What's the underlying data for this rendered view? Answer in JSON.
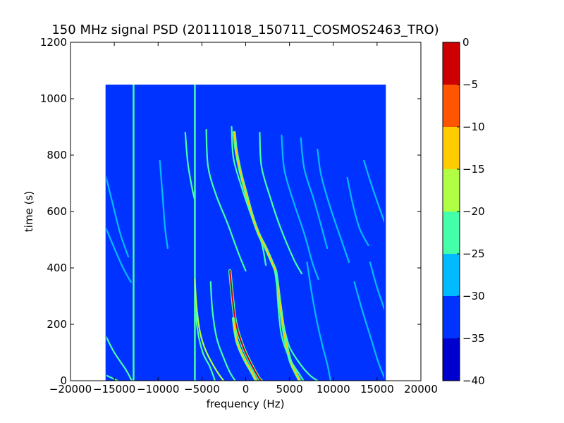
{
  "chart_data": {
    "type": "heatmap",
    "title": "150 MHz signal PSD (20111018_150711_COSMOS2463_TRO)",
    "xlabel": "frequency (Hz)",
    "ylabel": "time (s)",
    "xlim": [
      -20000,
      20000
    ],
    "ylim": [
      0,
      1200
    ],
    "x_ticks": [
      -20000,
      -15000,
      -10000,
      -5000,
      0,
      5000,
      10000,
      15000,
      20000
    ],
    "x_tick_labels": [
      "−20000",
      "−15000",
      "−10000",
      "−5000",
      "0",
      "5000",
      "10000",
      "15000",
      "20000"
    ],
    "y_ticks": [
      0,
      200,
      400,
      600,
      800,
      1000,
      1200
    ],
    "y_tick_labels": [
      "0",
      "200",
      "400",
      "600",
      "800",
      "1000",
      "1200"
    ],
    "data_extent": {
      "x": [
        -16000,
        16000
      ],
      "y": [
        0,
        1050
      ]
    },
    "background_level": -33,
    "colorbar": {
      "levels": [
        -40,
        -35,
        -30,
        -25,
        -20,
        -15,
        -10,
        -5,
        0
      ],
      "tick_labels": [
        "−40",
        "−35",
        "−30",
        "−25",
        "−20",
        "−15",
        "−10",
        "−5",
        "0"
      ],
      "colors": [
        "#0000cc",
        "#0033ff",
        "#00bbff",
        "#44ffaa",
        "#b0ff44",
        "#ffcc00",
        "#ff5500",
        "#cc0000"
      ]
    },
    "vertical_lines": [
      {
        "x": -12800,
        "y_range": [
          0,
          1050
        ],
        "level": -25
      },
      {
        "x": -5800,
        "y_range": [
          0,
          1050
        ],
        "level": -25
      }
    ],
    "traces": [
      {
        "points": [
          [
            -16000,
            20
          ],
          [
            -14600,
            0
          ]
        ],
        "level": -25
      },
      {
        "points": [
          [
            -16000,
            160
          ],
          [
            -15000,
            100
          ],
          [
            -13700,
            40
          ],
          [
            -13000,
            0
          ]
        ],
        "level": -25
      },
      {
        "points": [
          [
            -16000,
            545
          ],
          [
            -15000,
            470
          ],
          [
            -14000,
            400
          ],
          [
            -13100,
            350
          ]
        ],
        "level": -28
      },
      {
        "points": [
          [
            -16000,
            730
          ],
          [
            -15200,
            630
          ],
          [
            -14300,
            520
          ],
          [
            -13400,
            440
          ]
        ],
        "level": -30
      },
      {
        "points": [
          [
            -9800,
            780
          ],
          [
            -9500,
            660
          ],
          [
            -9200,
            540
          ],
          [
            -8900,
            470
          ]
        ],
        "level": -30
      },
      {
        "points": [
          [
            -6900,
            880
          ],
          [
            -6600,
            770
          ],
          [
            -6100,
            680
          ],
          [
            -5800,
            640
          ]
        ],
        "level": -25
      },
      {
        "points": [
          [
            -5800,
            360
          ],
          [
            -5600,
            260
          ],
          [
            -5200,
            170
          ],
          [
            -4600,
            110
          ],
          [
            -3800,
            60
          ],
          [
            -3000,
            20
          ],
          [
            -2500,
            0
          ]
        ],
        "level": -20
      },
      {
        "points": [
          [
            -5800,
            280
          ],
          [
            -5500,
            180
          ],
          [
            -4900,
            100
          ],
          [
            -4100,
            50
          ],
          [
            -3500,
            0
          ]
        ],
        "level": -25
      },
      {
        "points": [
          [
            -4500,
            890
          ],
          [
            -4300,
            760
          ],
          [
            -3400,
            660
          ],
          [
            -2100,
            560
          ],
          [
            -800,
            450
          ],
          [
            0,
            390
          ]
        ],
        "level": -25
      },
      {
        "points": [
          [
            -4000,
            350
          ],
          [
            -3800,
            250
          ],
          [
            -3300,
            150
          ],
          [
            -2500,
            80
          ],
          [
            -1800,
            30
          ],
          [
            -1200,
            0
          ]
        ],
        "level": -25
      },
      {
        "points": [
          [
            -1600,
            900
          ],
          [
            -1400,
            790
          ],
          [
            -500,
            690
          ],
          [
            700,
            580
          ],
          [
            1800,
            490
          ],
          [
            2300,
            410
          ]
        ],
        "level": -25
      },
      {
        "points": [
          [
            -1800,
            390
          ],
          [
            -1500,
            290
          ],
          [
            -1100,
            200
          ],
          [
            -300,
            120
          ],
          [
            600,
            60
          ],
          [
            1500,
            10
          ],
          [
            1800,
            0
          ]
        ],
        "level": -5
      },
      {
        "points": [
          [
            -1400,
            220
          ],
          [
            -1000,
            140
          ],
          [
            -200,
            80
          ],
          [
            700,
            30
          ],
          [
            1200,
            0
          ]
        ],
        "level": -15
      },
      {
        "points": [
          [
            -1300,
            880
          ],
          [
            -1100,
            820
          ],
          [
            -600,
            740
          ],
          [
            0,
            670
          ],
          [
            700,
            590
          ],
          [
            1500,
            520
          ],
          [
            2300,
            470
          ],
          [
            3000,
            420
          ],
          [
            3400,
            390
          ],
          [
            3600,
            350
          ],
          [
            3800,
            300
          ],
          [
            4100,
            230
          ],
          [
            4500,
            150
          ],
          [
            5100,
            70
          ],
          [
            6000,
            10
          ],
          [
            6200,
            0
          ]
        ],
        "level": -15
      },
      {
        "points": [
          [
            1600,
            880
          ],
          [
            1800,
            760
          ],
          [
            2800,
            650
          ],
          [
            4000,
            540
          ],
          [
            5500,
            430
          ],
          [
            6400,
            380
          ]
        ],
        "level": -25
      },
      {
        "points": [
          [
            3500,
            390
          ],
          [
            3700,
            270
          ],
          [
            4100,
            160
          ],
          [
            5000,
            80
          ],
          [
            6200,
            20
          ],
          [
            6600,
            0
          ]
        ],
        "level": -25
      },
      {
        "points": [
          [
            4100,
            870
          ],
          [
            4400,
            750
          ],
          [
            5400,
            640
          ],
          [
            6700,
            520
          ],
          [
            7600,
            420
          ],
          [
            8300,
            360
          ]
        ],
        "level": -28
      },
      {
        "points": [
          [
            4300,
            200
          ],
          [
            5000,
            120
          ],
          [
            6200,
            60
          ],
          [
            7300,
            20
          ],
          [
            8200,
            0
          ]
        ],
        "level": -25
      },
      {
        "points": [
          [
            6300,
            860
          ],
          [
            6700,
            750
          ],
          [
            7800,
            640
          ],
          [
            8700,
            540
          ],
          [
            9300,
            470
          ]
        ],
        "level": -30
      },
      {
        "points": [
          [
            7000,
            420
          ],
          [
            7600,
            300
          ],
          [
            8200,
            200
          ],
          [
            8800,
            120
          ],
          [
            9300,
            60
          ],
          [
            9700,
            0
          ]
        ],
        "level": -28
      },
      {
        "points": [
          [
            8200,
            820
          ],
          [
            8600,
            730
          ],
          [
            9600,
            620
          ],
          [
            10800,
            510
          ],
          [
            11800,
            420
          ]
        ],
        "level": -30
      },
      {
        "points": [
          [
            11600,
            720
          ],
          [
            12200,
            630
          ],
          [
            13000,
            540
          ],
          [
            14000,
            480
          ]
        ],
        "level": -30
      },
      {
        "points": [
          [
            12400,
            350
          ],
          [
            13300,
            250
          ],
          [
            14300,
            150
          ],
          [
            15200,
            60
          ],
          [
            16000,
            0
          ]
        ],
        "level": -28
      },
      {
        "points": [
          [
            13500,
            780
          ],
          [
            14300,
            700
          ],
          [
            15300,
            610
          ],
          [
            16000,
            550
          ]
        ],
        "level": -30
      },
      {
        "points": [
          [
            14200,
            420
          ],
          [
            15000,
            330
          ],
          [
            16000,
            240
          ]
        ],
        "level": -30
      }
    ]
  }
}
